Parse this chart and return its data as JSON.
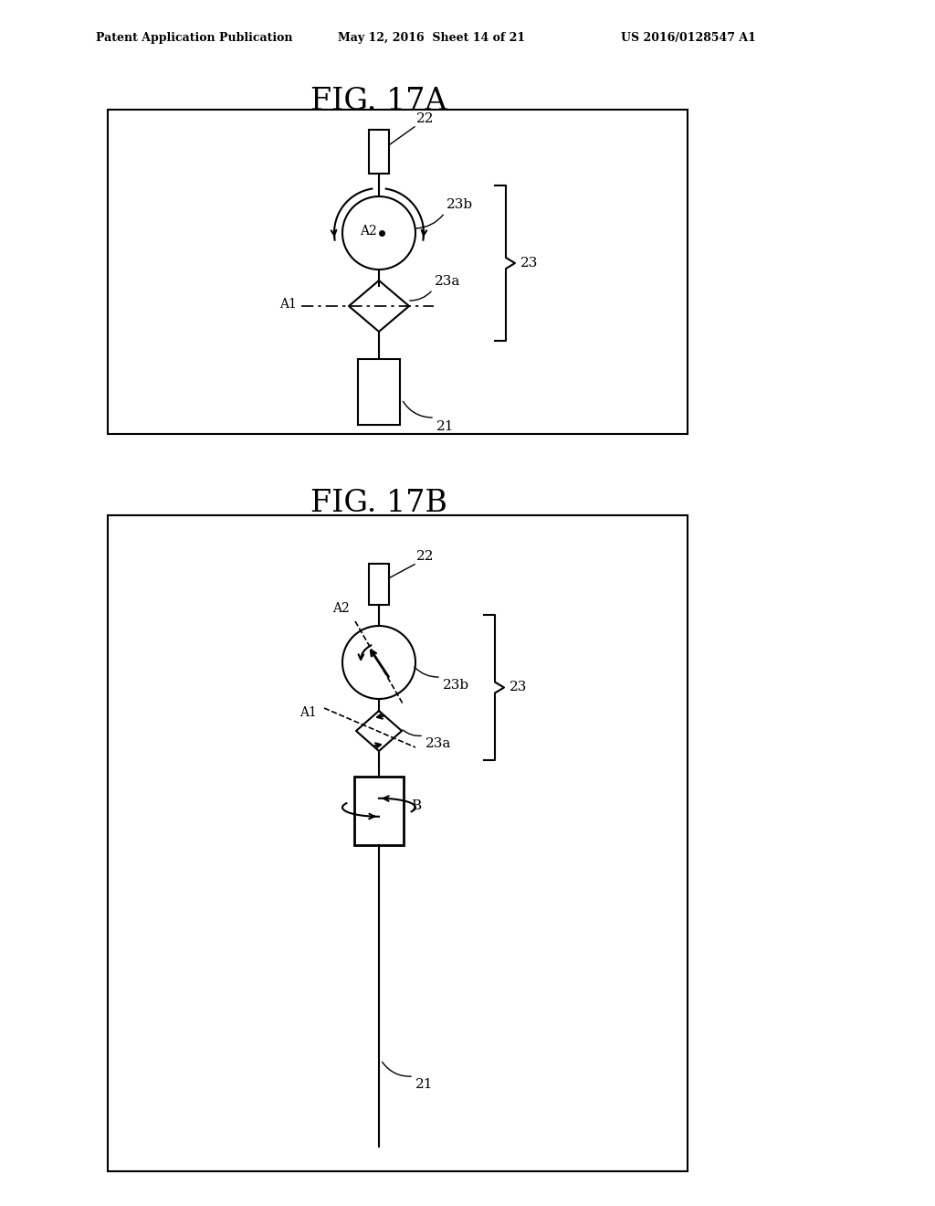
{
  "bg_color": "#ffffff",
  "line_color": "#000000",
  "header_text": "Patent Application Publication",
  "header_date": "May 12, 2016  Sheet 14 of 21",
  "header_patent": "US 2016/0128547 A1",
  "fig17a_title": "FIG. 17A",
  "fig17b_title": "FIG. 17B",
  "label_22": "22",
  "label_21": "21",
  "label_23": "23",
  "label_23a": "23a",
  "label_23b": "23b",
  "label_A1": "A1",
  "label_A2": "A2",
  "label_B": "B"
}
